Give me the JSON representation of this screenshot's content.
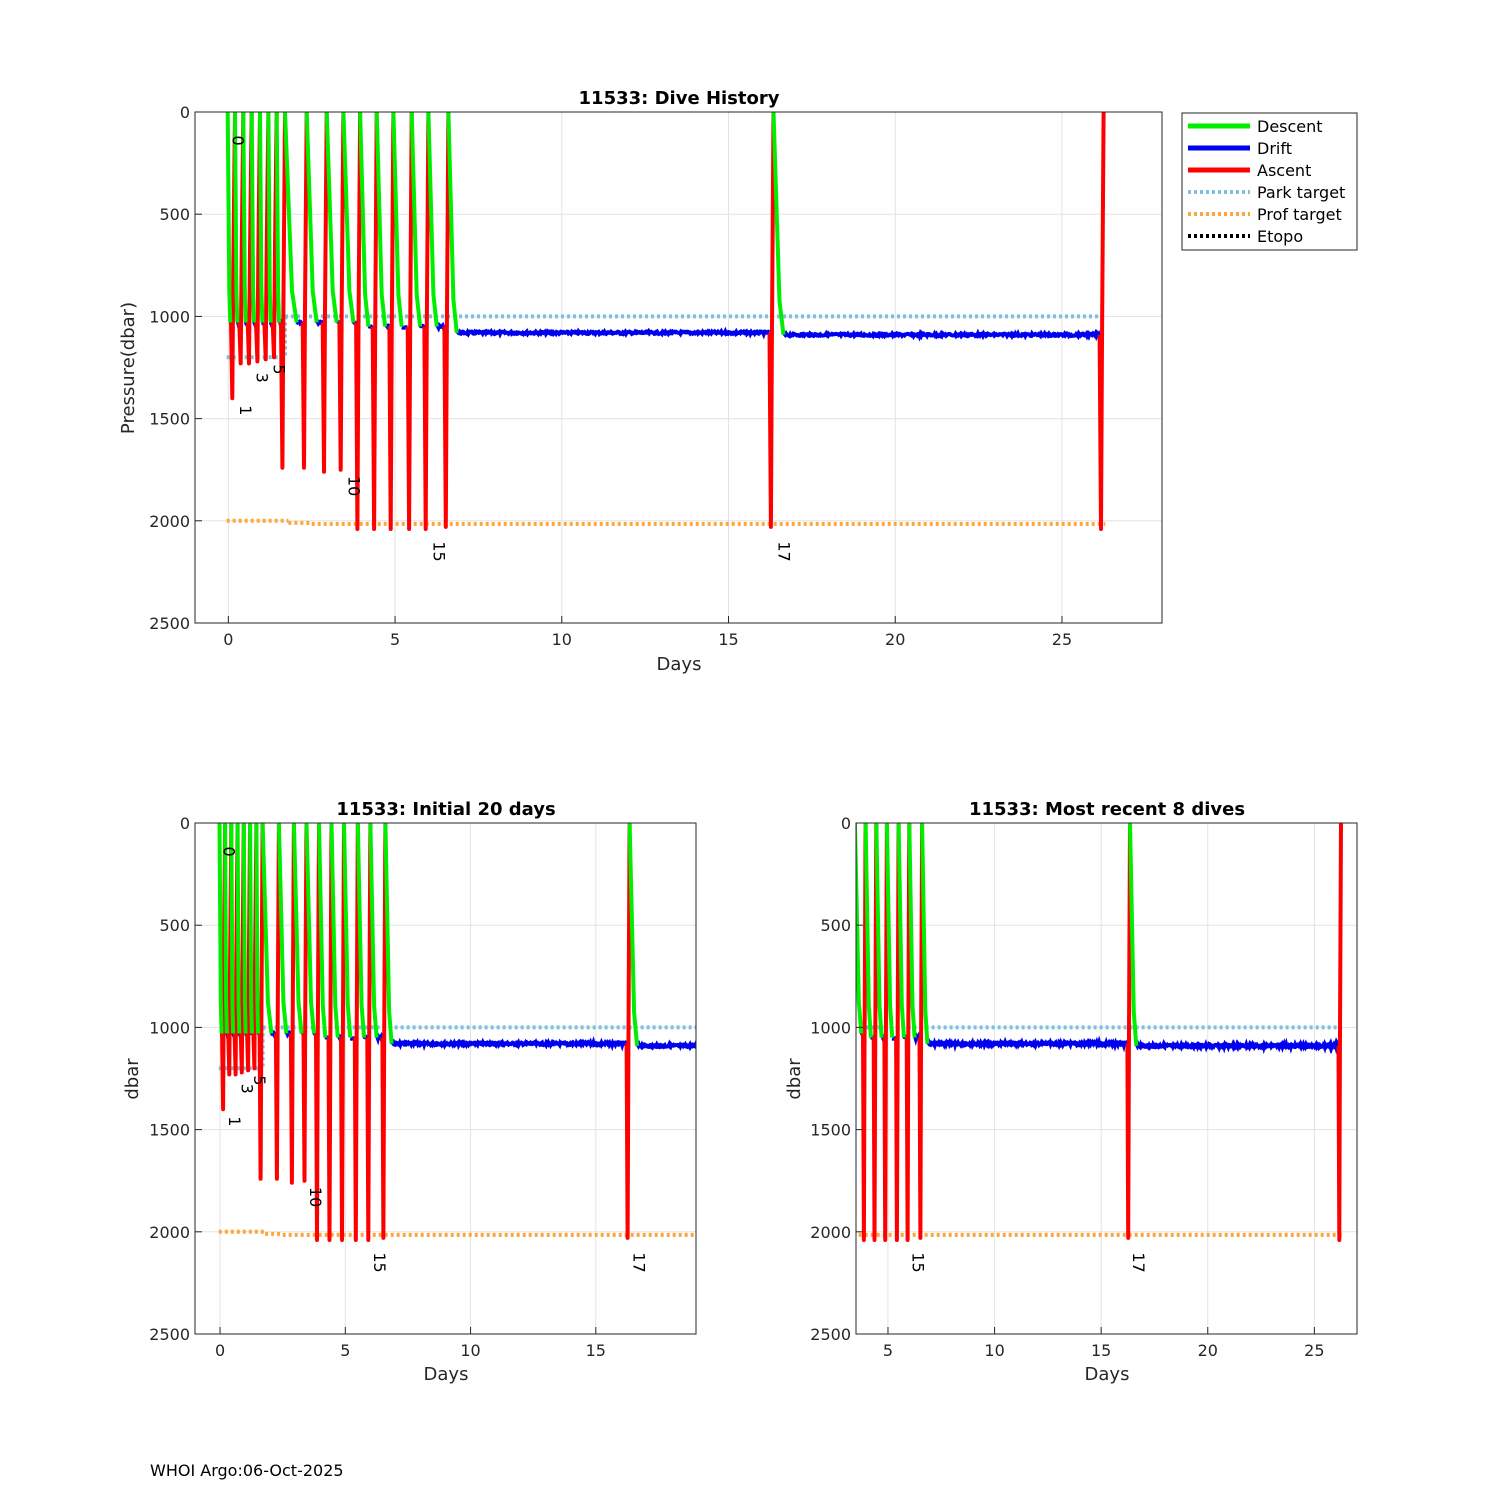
{
  "footer": "WHOI Argo:06-Oct-2025",
  "colors": {
    "descent": "#00ee00",
    "drift": "#0000ee",
    "ascent": "#ff0000",
    "park_target": "#7ec0e0",
    "prof_target": "#ffa53a",
    "etopo": "#000000"
  },
  "legend": [
    {
      "key": "descent",
      "label": "Descent",
      "dotted": false
    },
    {
      "key": "drift",
      "label": "Drift",
      "dotted": false
    },
    {
      "key": "ascent",
      "label": "Ascent",
      "dotted": false
    },
    {
      "key": "park_target",
      "label": "Park target",
      "dotted": true
    },
    {
      "key": "prof_target",
      "label": "Prof target",
      "dotted": true
    },
    {
      "key": "etopo",
      "label": "Etopo",
      "dotted": true
    }
  ],
  "chart_data": [
    {
      "type": "line",
      "title": "11533: Dive History",
      "xlabel": "Days",
      "ylabel": "Pressure(dbar)",
      "xlim": [
        -1,
        28
      ],
      "ylim": [
        0,
        2500
      ],
      "y_reversed": true,
      "grid": true,
      "legend_position": "outside-top-right",
      "xticks": [
        0,
        5,
        10,
        15,
        20,
        25
      ],
      "yticks": [
        0,
        500,
        1000,
        1500,
        2000,
        2500
      ],
      "label_dives": [
        "0",
        "1",
        "3",
        "5",
        "10",
        "15",
        "17"
      ]
    },
    {
      "type": "line",
      "title": "11533: Initial 20 days",
      "xlabel": "Days",
      "ylabel": "dbar",
      "xlim": [
        -1,
        19
      ],
      "ylim": [
        0,
        2500
      ],
      "y_reversed": true,
      "grid": true,
      "xticks": [
        0,
        5,
        10,
        15
      ],
      "yticks": [
        0,
        500,
        1000,
        1500,
        2000,
        2500
      ],
      "label_dives": [
        "0",
        "1",
        "3",
        "5",
        "10",
        "15",
        "17"
      ]
    },
    {
      "type": "line",
      "title": "11533: Most recent 8 dives",
      "xlabel": "Days",
      "ylabel": "dbar",
      "xlim": [
        3.5,
        27
      ],
      "ylim": [
        0,
        2500
      ],
      "y_reversed": true,
      "grid": true,
      "xticks": [
        5,
        10,
        15,
        20,
        25
      ],
      "yticks": [
        0,
        500,
        1000,
        1500,
        2000,
        2500
      ],
      "label_dives": [
        "15",
        "17"
      ]
    }
  ],
  "dives": [
    {
      "n": "0",
      "start": -0.02,
      "max_p": 1200,
      "desc_time": 0.08,
      "label_p": 140
    },
    {
      "n": "1",
      "start": 0.2,
      "max_p": 1400,
      "desc_time": 0.07,
      "label_p": 1460
    },
    {
      "n": "2",
      "start": 0.45,
      "max_p": 1230,
      "desc_time": 0.07
    },
    {
      "n": "3",
      "start": 0.7,
      "max_p": 1230,
      "desc_time": 0.07,
      "label_p": 1300
    },
    {
      "n": "4",
      "start": 0.95,
      "max_p": 1220,
      "desc_time": 0.07
    },
    {
      "n": "5",
      "start": 1.2,
      "max_p": 1210,
      "desc_time": 0.07,
      "label_p": 1260
    },
    {
      "n": "6",
      "start": 1.45,
      "max_p": 1200,
      "desc_time": 0.07
    },
    {
      "n": "7",
      "start": 1.7,
      "max_p": 1740,
      "desc_time": 0.35
    },
    {
      "n": "8",
      "start": 2.35,
      "max_p": 1740,
      "desc_time": 0.3
    },
    {
      "n": "9",
      "start": 2.95,
      "max_p": 1760,
      "desc_time": 0.3
    },
    {
      "n": "10",
      "start": 3.45,
      "max_p": 1750,
      "desc_time": 0.3,
      "label_p": 1830
    },
    {
      "n": "11",
      "start": 3.95,
      "max_p": 2040,
      "desc_time": 0.25
    },
    {
      "n": "12",
      "start": 4.45,
      "max_p": 2040,
      "desc_time": 0.25
    },
    {
      "n": "13",
      "start": 4.95,
      "max_p": 2040,
      "desc_time": 0.25
    },
    {
      "n": "14",
      "start": 5.5,
      "max_p": 2040,
      "desc_time": 0.25
    },
    {
      "n": "15",
      "start": 6.0,
      "max_p": 2040,
      "desc_time": 0.25,
      "label_p": 2150
    },
    {
      "n": "16",
      "start": 6.6,
      "max_p": 2030,
      "desc_time": 0.25,
      "drift_p": 1080
    },
    {
      "n": "17",
      "start": 16.35,
      "max_p": 2030,
      "desc_time": 0.3,
      "drift_p": 1090,
      "label_p": 2150
    },
    {
      "n": "18",
      "start": 26.25,
      "max_p": 2040,
      "desc_time": 0.0
    }
  ],
  "targets": {
    "park": [
      {
        "x": [
          -0.05,
          1.7
        ],
        "p": 1200
      },
      {
        "x": [
          1.7,
          26.3
        ],
        "p": 1000
      }
    ],
    "prof": [
      {
        "x": [
          -0.05,
          1.8
        ],
        "p": 2000
      },
      {
        "x": [
          1.8,
          2.5
        ],
        "p": 2010
      },
      {
        "x": [
          2.5,
          26.3
        ],
        "p": 2015
      }
    ]
  }
}
